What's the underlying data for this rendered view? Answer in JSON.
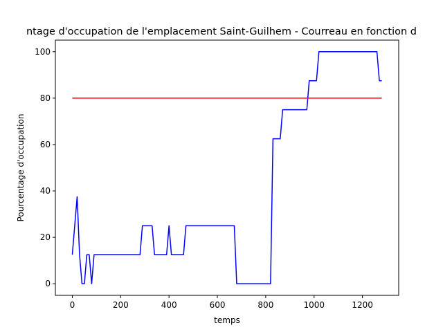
{
  "chart_data": {
    "type": "line",
    "title": "ntage d'occupation de l'emplacement Saint-Guilhem - Courreau en fonction d",
    "xlabel": "temps",
    "ylabel": "Pourcentage d'occupation",
    "xlim": [
      -70,
      1350
    ],
    "ylim": [
      -5,
      105
    ],
    "xticks": [
      0,
      200,
      400,
      600,
      800,
      1000,
      1200
    ],
    "yticks": [
      0,
      20,
      40,
      60,
      80,
      100
    ],
    "grid": false,
    "series": [
      {
        "color": "#0000ff",
        "points": [
          [
            0,
            12.5
          ],
          [
            20,
            37.5
          ],
          [
            30,
            12.5
          ],
          [
            40,
            0
          ],
          [
            50,
            0
          ],
          [
            60,
            12.5
          ],
          [
            70,
            12.5
          ],
          [
            80,
            0
          ],
          [
            90,
            12.5
          ],
          [
            280,
            12.5
          ],
          [
            290,
            25
          ],
          [
            330,
            25
          ],
          [
            340,
            12.5
          ],
          [
            390,
            12.5
          ],
          [
            400,
            25
          ],
          [
            410,
            12.5
          ],
          [
            460,
            12.5
          ],
          [
            470,
            25
          ],
          [
            670,
            25
          ],
          [
            680,
            0
          ],
          [
            820,
            0
          ],
          [
            830,
            62.5
          ],
          [
            860,
            62.5
          ],
          [
            870,
            75
          ],
          [
            970,
            75
          ],
          [
            980,
            87.5
          ],
          [
            1010,
            87.5
          ],
          [
            1020,
            100
          ],
          [
            1260,
            100
          ],
          [
            1270,
            87.5
          ],
          [
            1280,
            87.5
          ]
        ]
      },
      {
        "color": "#ff0000",
        "points": [
          [
            0,
            80
          ],
          [
            1280,
            80
          ]
        ]
      }
    ]
  }
}
